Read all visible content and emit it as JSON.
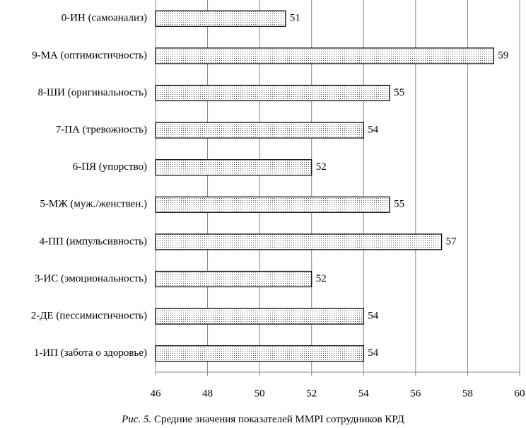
{
  "chart_data": {
    "type": "bar",
    "orientation": "horizontal",
    "caption_label": "Рис. 5.",
    "title": "Средние значения показателей MMPI сотрудников КРД",
    "categories": [
      "0-ИН (самоанализ)",
      "9-МА (оптимистичность)",
      "8-ШИ (оригинальность)",
      "7-ПА (тревожность)",
      "6-ПЯ (упорство)",
      "5-МЖ (муж./женствен.)",
      "4-ПП (импульсивность)",
      "3-ИС (эмоциональность)",
      "2-ДЕ (пессимистичность)",
      "1-ИП (забота о здоровье)"
    ],
    "values": [
      51,
      59,
      55,
      54,
      52,
      55,
      57,
      52,
      54,
      54
    ],
    "xlim": [
      46,
      60
    ],
    "xticks": [
      46,
      48,
      50,
      52,
      54,
      56,
      58,
      60
    ],
    "grid": true,
    "color": "#000000",
    "fill_pattern": "dots"
  }
}
